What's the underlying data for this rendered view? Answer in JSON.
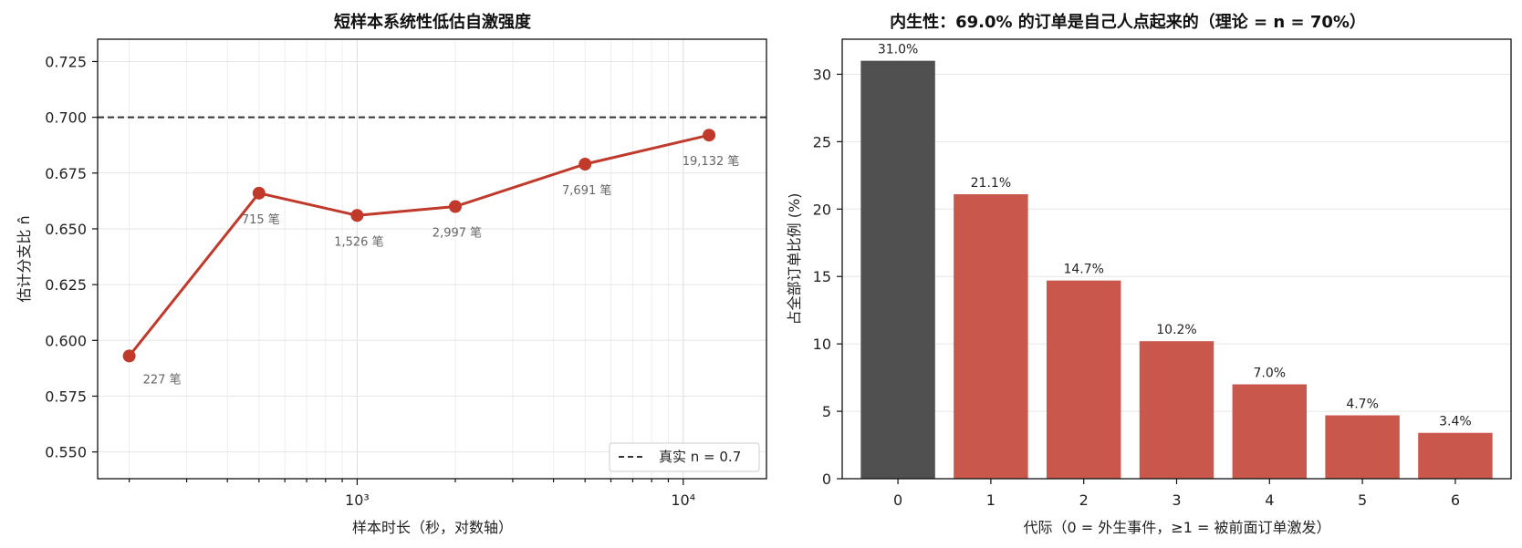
{
  "charts": {
    "left": {
      "title": "短样本系统性低估自激强度",
      "xlabel": "样本时长（秒，对数轴）",
      "ylabel": "估计分支比 n̂",
      "legend_label": "真实 n = 0.7"
    },
    "right": {
      "title": "内生性：69.0% 的订单是自己人点起来的（理论 = n = 70%）",
      "xlabel": "代际（0 = 外生事件，≥1 = 被前面订单激发）",
      "ylabel": "占全部订单比例 (%)"
    }
  },
  "chart_data": [
    {
      "type": "line",
      "title": "短样本系统性低估自激强度",
      "xlabel": "样本时长（秒，对数轴）",
      "ylabel": "估计分支比 n̂",
      "xscale": "log",
      "xlim": [
        160,
        18000
      ],
      "ylim": [
        0.538,
        0.735
      ],
      "xticks": [
        1000,
        10000
      ],
      "xtick_labels": [
        "10³",
        "10⁴"
      ],
      "yticks": [
        0.55,
        0.575,
        0.6,
        0.625,
        0.65,
        0.675,
        0.7,
        0.725
      ],
      "ytick_labels": [
        "0.550",
        "0.575",
        "0.600",
        "0.625",
        "0.650",
        "0.675",
        "0.700",
        "0.725"
      ],
      "grid": true,
      "series": [
        {
          "x": [
            200,
            500,
            1000,
            2000,
            5000,
            12000
          ],
          "y": [
            0.593,
            0.666,
            0.656,
            0.66,
            0.679,
            0.692
          ],
          "color": "#c0392b",
          "annotations": [
            "227 笔",
            "715 笔",
            "1,526 笔",
            "2,997 笔",
            "7,691 笔",
            "19,132 笔"
          ]
        }
      ],
      "reference_line": {
        "y": 0.7,
        "name": "真实 n = 0.7",
        "style": "dashed",
        "color": "#333333"
      },
      "legend": {
        "position": "bottom-right",
        "entries": [
          "真实 n = 0.7"
        ]
      }
    },
    {
      "type": "bar",
      "title": "内生性：69.0% 的订单是自己人点起来的（理论 = n = 70%）",
      "xlabel": "代际（0 = 外生事件，≥1 = 被前面订单激发）",
      "ylabel": "占全部订单比例 (%)",
      "categories": [
        "0",
        "1",
        "2",
        "3",
        "4",
        "5",
        "6"
      ],
      "values": [
        31.0,
        21.1,
        14.7,
        10.2,
        7.0,
        4.7,
        3.4
      ],
      "value_labels": [
        "31.0%",
        "21.1%",
        "14.7%",
        "10.2%",
        "7.0%",
        "4.7%",
        "3.4%"
      ],
      "colors": [
        "#505050",
        "#c9574b",
        "#c9574b",
        "#c9574b",
        "#c9574b",
        "#c9574b",
        "#c9574b"
      ],
      "ylim": [
        0,
        32.6
      ],
      "yticks": [
        0,
        5,
        10,
        15,
        20,
        25,
        30
      ],
      "grid": "y"
    }
  ]
}
